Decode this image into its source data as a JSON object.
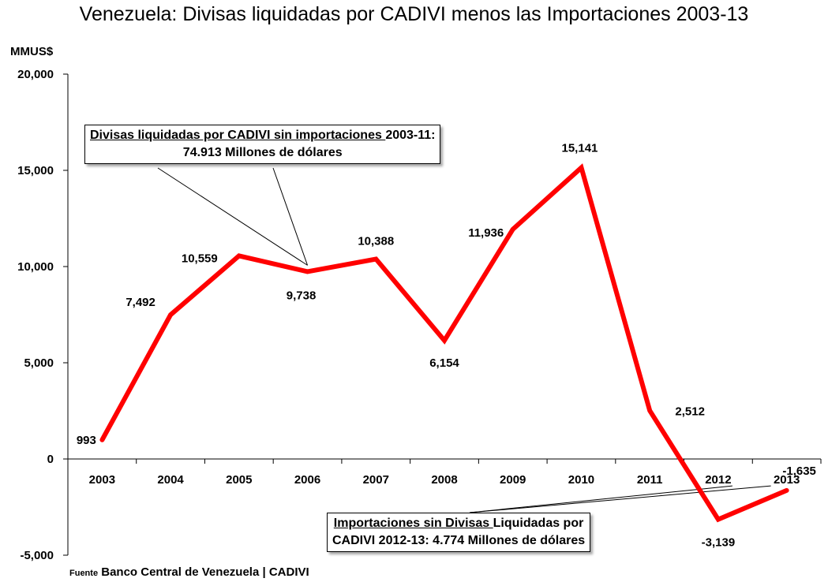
{
  "title": "Venezuela: Divisas liquidadas por CADIVI menos las Importaciones 2003-13",
  "chart_data": {
    "type": "line",
    "title": "Venezuela: Divisas liquidadas por CADIVI menos las Importaciones 2003-13",
    "ylabel": "MMUS$",
    "xlabel": "",
    "ylim": [
      -5000,
      20000
    ],
    "yticks": [
      -5000,
      0,
      5000,
      10000,
      15000,
      20000
    ],
    "ytick_labels": [
      "-5,000",
      "0",
      "5,000",
      "10,000",
      "15,000",
      "20,000"
    ],
    "categories": [
      "2003",
      "2004",
      "2005",
      "2006",
      "2007",
      "2008",
      "2009",
      "2010",
      "2011",
      "2012",
      "2013"
    ],
    "series": [
      {
        "values": [
          993,
          7492,
          10559,
          9738,
          10388,
          6154,
          11936,
          15141,
          2512,
          -3139,
          -1635
        ],
        "labels": [
          "993",
          "7,492",
          "10,559",
          "9,738",
          "10,388",
          "6,154",
          "11,936",
          "15,141",
          "2,512",
          "-3,139",
          "-1,635"
        ],
        "color": "#ff0000"
      }
    ],
    "grid": false,
    "legend": "none"
  },
  "annotations": {
    "top": {
      "underlined": "Divisas liquidadas por CADIVI sin importaciones ",
      "rest": "2003-11:",
      "line2": "74.913 Millones de dólares"
    },
    "bottom": {
      "underlined": "Importaciones sin Divisas ",
      "rest": "Liquidadas por",
      "line2": "CADIVI 2012-13: 4.774  Millones de dólares"
    }
  },
  "source": {
    "prefix": "Fuente",
    "text": " Banco Central de Venezuela | CADIVI"
  }
}
